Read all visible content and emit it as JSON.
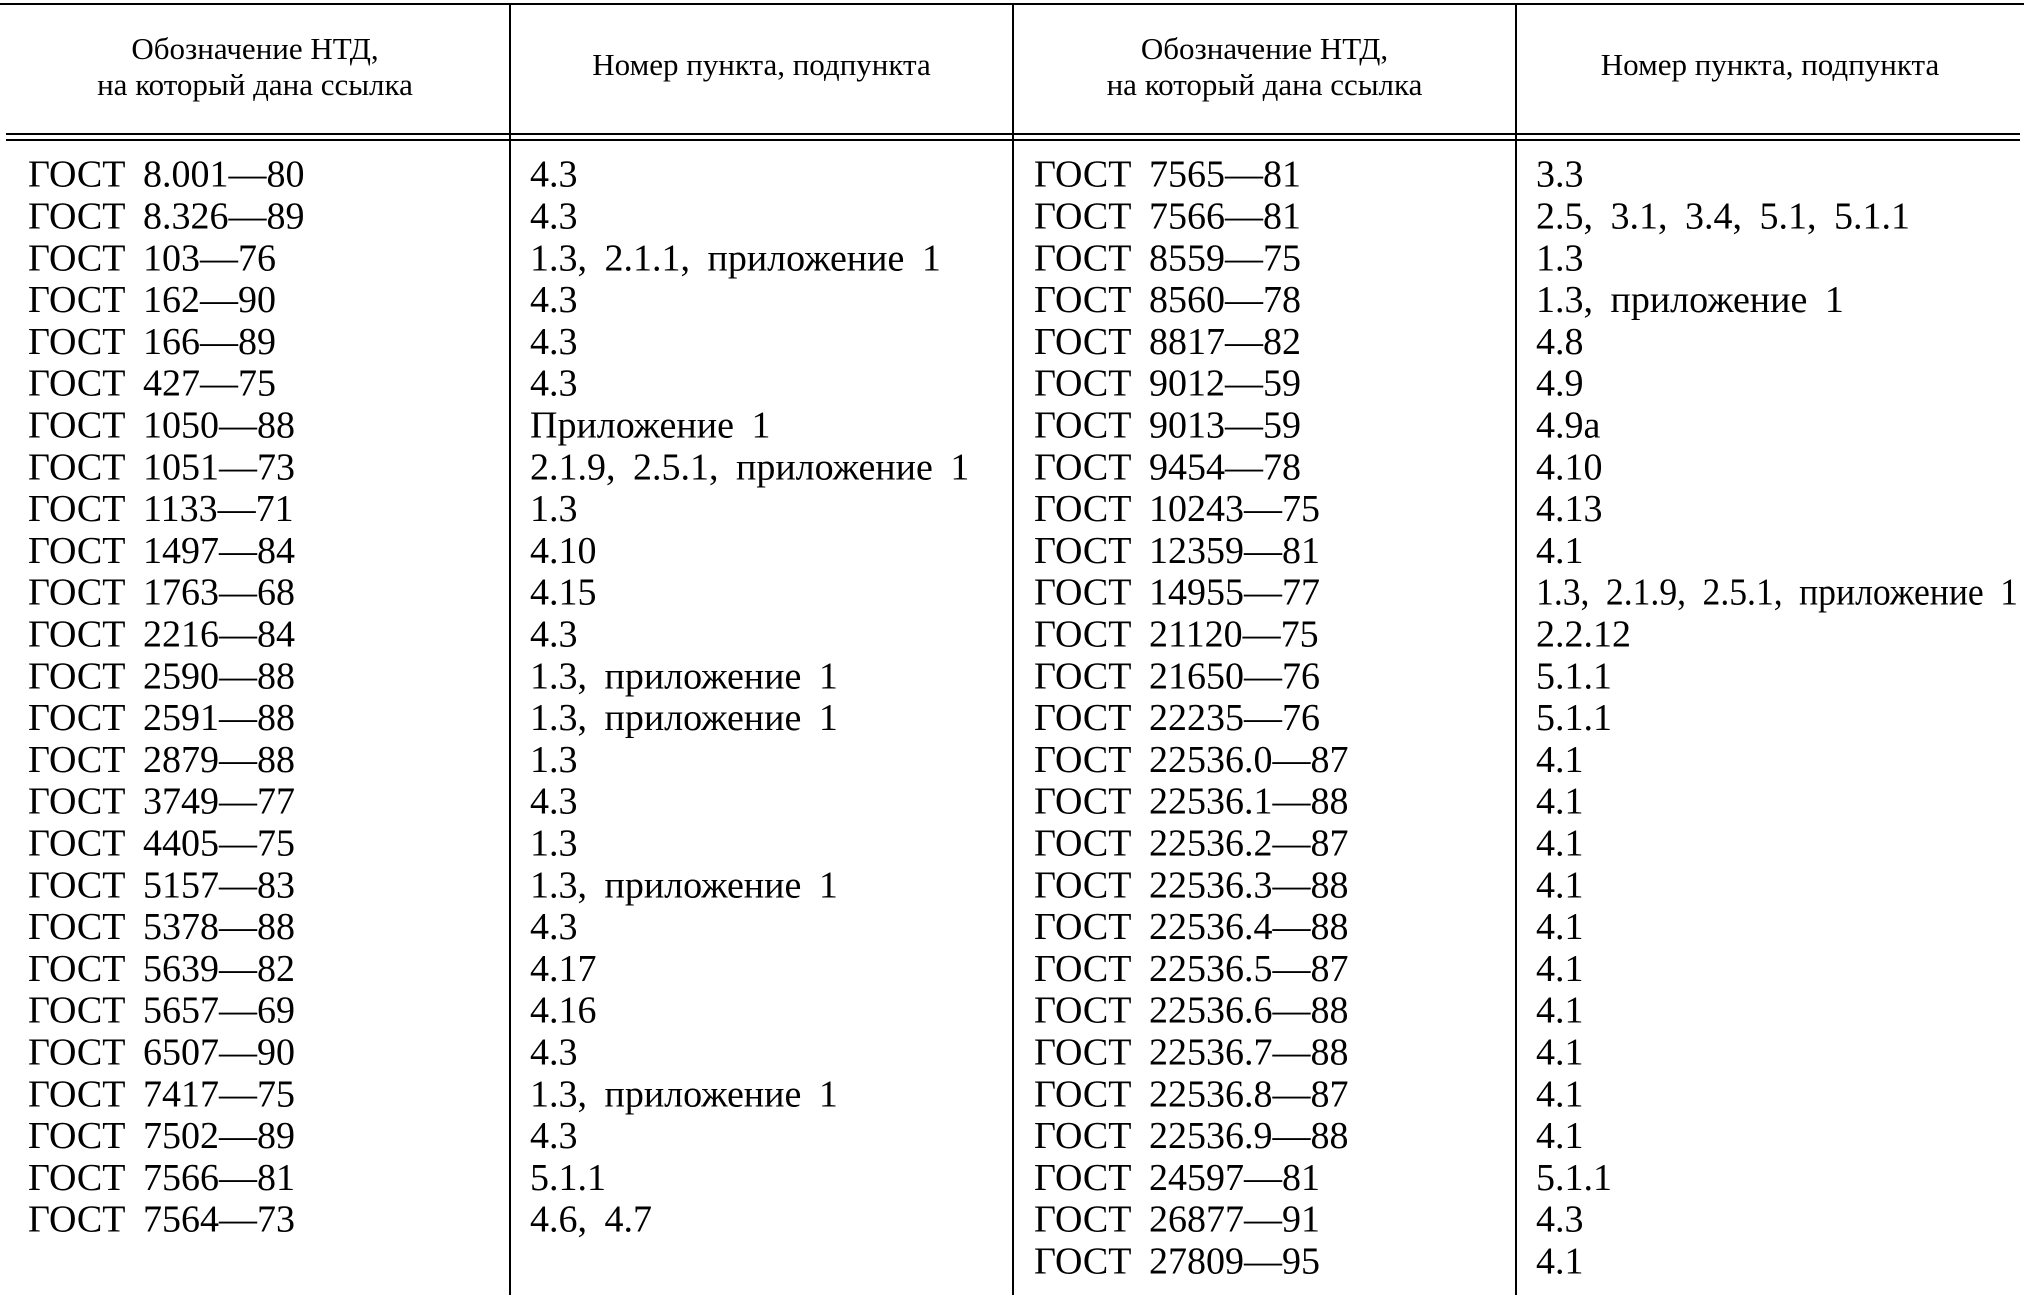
{
  "table": {
    "headers": [
      [
        "Обозначение НТД,",
        "на который дана ссылка"
      ],
      [
        "Номер пункта, подпункта"
      ],
      [
        "Обозначение НТД,",
        "на который дана ссылка"
      ],
      [
        "Номер пункта, подпункта"
      ]
    ],
    "left": [
      [
        "ГОСТ 8.001—80",
        "4.3"
      ],
      [
        "ГОСТ 8.326—89",
        "4.3"
      ],
      [
        "ГОСТ 103—76",
        "1.3, 2.1.1, приложение 1"
      ],
      [
        "ГОСТ 162—90",
        "4.3"
      ],
      [
        "ГОСТ 166—89",
        "4.3"
      ],
      [
        "ГОСТ 427—75",
        "4.3"
      ],
      [
        "ГОСТ 1050—88",
        "Приложение 1"
      ],
      [
        "ГОСТ 1051—73",
        "2.1.9, 2.5.1, приложение 1"
      ],
      [
        "ГОСТ 1133—71",
        "1.3"
      ],
      [
        "ГОСТ 1497—84",
        "4.10"
      ],
      [
        "ГОСТ 1763—68",
        "4.15"
      ],
      [
        "ГОСТ 2216—84",
        "4.3"
      ],
      [
        "ГОСТ 2590—88",
        "1.3, приложение 1"
      ],
      [
        "ГОСТ 2591—88",
        "1.3, приложение 1"
      ],
      [
        "ГОСТ 2879—88",
        "1.3"
      ],
      [
        "ГОСТ 3749—77",
        "4.3"
      ],
      [
        "ГОСТ 4405—75",
        "1.3"
      ],
      [
        "ГОСТ 5157—83",
        "1.3, приложение 1"
      ],
      [
        "ГОСТ 5378—88",
        "4.3"
      ],
      [
        "ГОСТ 5639—82",
        "4.17"
      ],
      [
        "ГОСТ 5657—69",
        "4.16"
      ],
      [
        "ГОСТ 6507—90",
        "4.3"
      ],
      [
        "ГОСТ 7417—75",
        "1.3, приложение 1"
      ],
      [
        "ГОСТ 7502—89",
        "4.3"
      ],
      [
        "ГОСТ 7566—81",
        "5.1.1"
      ],
      [
        "ГОСТ 7564—73",
        "4.6, 4.7"
      ]
    ],
    "right": [
      [
        "ГОСТ 7565—81",
        "3.3"
      ],
      [
        "ГОСТ 7566—81",
        "2.5, 3.1, 3.4, 5.1, 5.1.1"
      ],
      [
        "ГОСТ 8559—75",
        "1.3"
      ],
      [
        "ГОСТ 8560—78",
        "1.3, приложение 1"
      ],
      [
        "ГОСТ 8817—82",
        "4.8"
      ],
      [
        "ГОСТ 9012—59",
        "4.9"
      ],
      [
        "ГОСТ 9013—59",
        "4.9а"
      ],
      [
        "ГОСТ 9454—78",
        "4.10"
      ],
      [
        "ГОСТ 10243—75",
        "4.13"
      ],
      [
        "ГОСТ 12359—81",
        "4.1"
      ],
      [
        "ГОСТ 14955—77",
        "1.3, 2.1.9, 2.5.1, приложение 1"
      ],
      [
        "ГОСТ 21120—75",
        "2.2.12"
      ],
      [
        "ГОСТ 21650—76",
        "5.1.1"
      ],
      [
        "ГОСТ 22235—76",
        "5.1.1"
      ],
      [
        "ГОСТ 22536.0—87",
        "4.1"
      ],
      [
        "ГОСТ 22536.1—88",
        "4.1"
      ],
      [
        "ГОСТ 22536.2—87",
        "4.1"
      ],
      [
        "ГОСТ 22536.3—88",
        "4.1"
      ],
      [
        "ГОСТ 22536.4—88",
        "4.1"
      ],
      [
        "ГОСТ 22536.5—87",
        "4.1"
      ],
      [
        "ГОСТ 22536.6—88",
        "4.1"
      ],
      [
        "ГОСТ 22536.7—88",
        "4.1"
      ],
      [
        "ГОСТ 22536.8—87",
        "4.1"
      ],
      [
        "ГОСТ 22536.9—88",
        "4.1"
      ],
      [
        "ГОСТ 24597—81",
        "5.1.1"
      ],
      [
        "ГОСТ 26877—91",
        "4.3"
      ],
      [
        "ГОСТ 27809—95",
        "4.1"
      ]
    ]
  }
}
